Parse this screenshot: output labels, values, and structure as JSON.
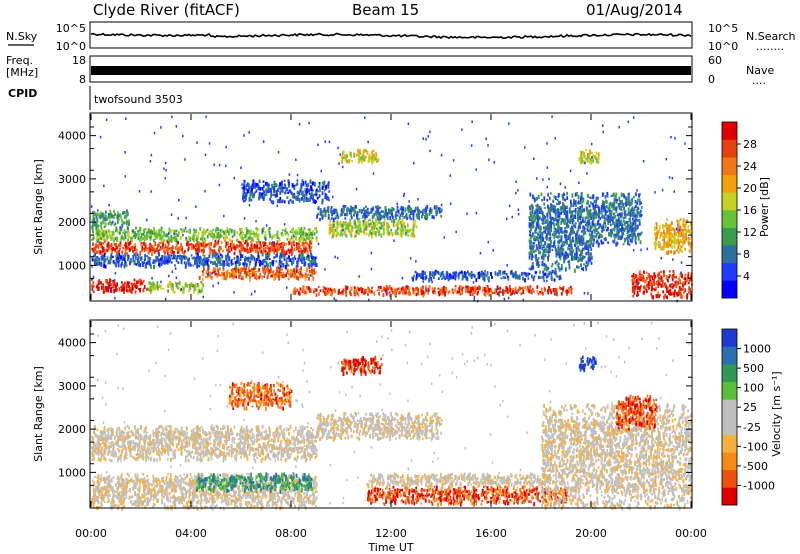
{
  "header": {
    "title": "Clyde River (fitACF)",
    "beam": "Beam 15",
    "date": "01/Aug/2014"
  },
  "noise_panel": {
    "left_label": "N.Sky",
    "right_label": "N.Search",
    "right_sub": "........",
    "ticks_left": [
      "10^5",
      "10^0"
    ],
    "ticks_right": [
      "10^5",
      "10^0"
    ]
  },
  "freq_panel": {
    "left_label_1": "Freq.",
    "left_label_2": "[MHz]",
    "right_label": "Nave",
    "right_sub": "....",
    "ticks_left": [
      "18",
      "8"
    ],
    "ticks_right": [
      "60",
      "0"
    ]
  },
  "cpid": {
    "label": "CPID",
    "value": "twofsound 3503"
  },
  "chart_data": [
    {
      "type": "heatmap",
      "name": "power",
      "ylabel": "Slant Range [km]",
      "yticks": [
        "1000",
        "2000",
        "3000",
        "4000"
      ],
      "ylim": [
        200,
        4500
      ],
      "xlim": [
        0,
        24
      ],
      "colorbar": {
        "label": "Power [dB]",
        "ticks": [
          "28",
          "24",
          "20",
          "16",
          "12",
          "8",
          "4"
        ],
        "colors": [
          "#0000ff",
          "#1e3cff",
          "#2f6fa0",
          "#3a9a4e",
          "#67c23a",
          "#c6d020",
          "#f0a30a",
          "#f07818",
          "#e84010",
          "#e00000"
        ]
      },
      "regions": [
        {
          "t0": 0.0,
          "t1": 2.2,
          "r0": 400,
          "r1": 700,
          "level": 0.95
        },
        {
          "t0": 2.2,
          "t1": 4.5,
          "r0": 400,
          "r1": 650,
          "level": 0.5
        },
        {
          "t0": 0.0,
          "t1": 8.8,
          "r0": 1300,
          "r1": 1600,
          "level": 0.85
        },
        {
          "t0": 0.0,
          "t1": 9.0,
          "r0": 1600,
          "r1": 1900,
          "level": 0.45
        },
        {
          "t0": 0.0,
          "t1": 1.5,
          "r0": 1900,
          "r1": 2300,
          "level": 0.35
        },
        {
          "t0": 4.3,
          "t1": 9.0,
          "r0": 700,
          "r1": 1000,
          "level": 0.8
        },
        {
          "t0": 0.0,
          "t1": 9.0,
          "r0": 1000,
          "r1": 1300,
          "level": 0.2
        },
        {
          "t0": 9.5,
          "t1": 13.0,
          "r0": 1700,
          "r1": 2100,
          "level": 0.5
        },
        {
          "t0": 9.0,
          "t1": 14.0,
          "r0": 2100,
          "r1": 2400,
          "level": 0.25
        },
        {
          "t0": 10.0,
          "t1": 11.5,
          "r0": 3400,
          "r1": 3700,
          "level": 0.55
        },
        {
          "t0": 6.0,
          "t1": 9.5,
          "r0": 2500,
          "r1": 3000,
          "level": 0.2
        },
        {
          "t0": 8.0,
          "t1": 19.2,
          "r0": 350,
          "r1": 550,
          "level": 0.85
        },
        {
          "t0": 12.8,
          "t1": 18.8,
          "r0": 700,
          "r1": 900,
          "level": 0.2
        },
        {
          "t0": 17.5,
          "t1": 20.0,
          "r0": 900,
          "r1": 2700,
          "level": 0.25
        },
        {
          "t0": 19.5,
          "t1": 20.3,
          "r0": 3400,
          "r1": 3700,
          "level": 0.55
        },
        {
          "t0": 20.0,
          "t1": 22.0,
          "r0": 1500,
          "r1": 2700,
          "level": 0.25
        },
        {
          "t0": 21.6,
          "t1": 24.0,
          "r0": 300,
          "r1": 900,
          "level": 0.9
        },
        {
          "t0": 22.5,
          "t1": 24.0,
          "r0": 1300,
          "r1": 2100,
          "level": 0.65
        }
      ]
    },
    {
      "type": "heatmap",
      "name": "velocity",
      "ylabel": "Slant Range [km]",
      "yticks": [
        "1000",
        "2000",
        "3000",
        "4000"
      ],
      "ylim": [
        200,
        4500
      ],
      "xlim": [
        0,
        24
      ],
      "colorbar": {
        "label": "Velocity [m s⁻¹]",
        "ticks": [
          "1000",
          "500",
          "100",
          "25",
          "-25",
          "-100",
          "-500",
          "-1000"
        ],
        "colors": [
          "#e00000",
          "#ee5010",
          "#f58a18",
          "#f4b040",
          "#c0c0c0",
          "#c0c0c0",
          "#5abf3a",
          "#2e9a56",
          "#2a70b0",
          "#1e3ad0"
        ]
      },
      "regions": [
        {
          "t0": 0.0,
          "t1": 9.0,
          "r0": 1300,
          "r1": 2100,
          "level": 0.45
        },
        {
          "t0": 0.0,
          "t1": 9.0,
          "r0": 200,
          "r1": 1000,
          "level": 0.45
        },
        {
          "t0": 4.2,
          "t1": 8.8,
          "r0": 600,
          "r1": 1000,
          "level": 0.75
        },
        {
          "t0": 5.5,
          "t1": 8.0,
          "r0": 2500,
          "r1": 3100,
          "level": 0.2
        },
        {
          "t0": 10.0,
          "t1": 11.6,
          "r0": 3300,
          "r1": 3700,
          "level": 0.1
        },
        {
          "t0": 9.0,
          "t1": 14.0,
          "r0": 1800,
          "r1": 2400,
          "level": 0.45
        },
        {
          "t0": 11.0,
          "t1": 19.0,
          "r0": 300,
          "r1": 700,
          "level": 0.15
        },
        {
          "t0": 11.0,
          "t1": 18.0,
          "r0": 700,
          "r1": 1000,
          "level": 0.45
        },
        {
          "t0": 18.0,
          "t1": 24.0,
          "r0": 200,
          "r1": 2600,
          "level": 0.45
        },
        {
          "t0": 19.5,
          "t1": 20.2,
          "r0": 3400,
          "r1": 3700,
          "level": 0.97
        },
        {
          "t0": 21.0,
          "t1": 22.6,
          "r0": 2000,
          "r1": 2800,
          "level": 0.15
        }
      ]
    }
  ],
  "xaxis": {
    "label": "Time UT",
    "ticks": [
      "00:00",
      "04:00",
      "08:00",
      "12:00",
      "16:00",
      "20:00",
      "00:00"
    ]
  }
}
